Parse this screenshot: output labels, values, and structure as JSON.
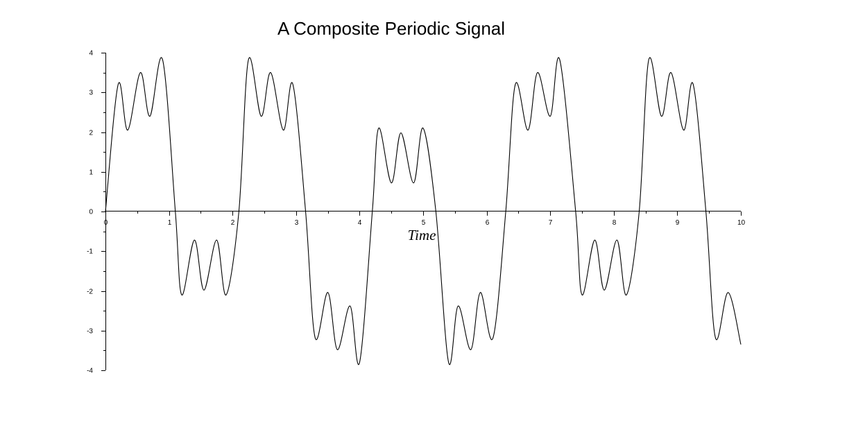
{
  "chart_data": {
    "type": "line",
    "title": "A Composite Periodic Signal",
    "xlabel": "Time",
    "ylabel": "",
    "xlim": [
      0,
      10
    ],
    "ylim": [
      -4,
      4
    ],
    "x_ticks": [
      0,
      1,
      2,
      3,
      4,
      5,
      6,
      7,
      8,
      9,
      10
    ],
    "y_ticks": [
      -4,
      -3,
      -2,
      -1,
      0,
      1,
      2,
      3,
      4
    ],
    "x_tick_labels": [
      "0",
      "1",
      "2",
      "3",
      "4",
      "5",
      "6",
      "7",
      "8",
      "9",
      "10"
    ],
    "y_tick_labels": [
      "-4",
      "-3",
      "-2",
      "-1",
      "0",
      "1",
      "2",
      "3",
      "4"
    ],
    "grid": false,
    "line_color": "#000000",
    "series": [
      {
        "x": [
          0.0,
          0.2,
          0.35,
          0.55,
          0.7,
          0.9,
          1.1,
          1.2,
          1.4,
          1.55,
          1.75,
          1.9,
          2.1,
          2.25,
          2.45,
          2.6,
          2.8,
          2.95,
          3.15,
          3.3,
          3.5,
          3.65,
          3.85,
          4.0,
          4.2,
          4.3,
          4.5,
          4.65,
          4.85,
          5.0,
          5.2,
          5.4,
          5.55,
          5.75,
          5.9,
          6.1,
          6.3,
          6.45,
          6.65,
          6.8,
          7.0,
          7.15,
          7.4,
          7.5,
          7.7,
          7.85,
          8.05,
          8.2,
          8.4,
          8.55,
          8.75,
          8.9,
          9.1,
          9.25,
          9.45,
          9.6,
          9.8,
          10.0
        ],
        "y": [
          0.0,
          3.2,
          2.05,
          3.5,
          2.4,
          3.82,
          0.0,
          -2.1,
          -0.72,
          -1.98,
          -0.72,
          -2.1,
          0.0,
          3.82,
          2.4,
          3.5,
          2.05,
          3.2,
          0.0,
          -3.18,
          -2.04,
          -3.48,
          -2.38,
          -3.8,
          0.0,
          2.1,
          0.72,
          1.98,
          0.72,
          2.1,
          0.0,
          -3.8,
          -2.38,
          -3.48,
          -2.04,
          -3.18,
          0.0,
          3.2,
          2.05,
          3.5,
          2.4,
          3.82,
          0.0,
          -2.1,
          -0.72,
          -1.98,
          -0.72,
          -2.1,
          0.0,
          3.82,
          2.4,
          3.5,
          2.05,
          3.2,
          0.0,
          -3.18,
          -2.04,
          -3.35
        ]
      }
    ]
  }
}
